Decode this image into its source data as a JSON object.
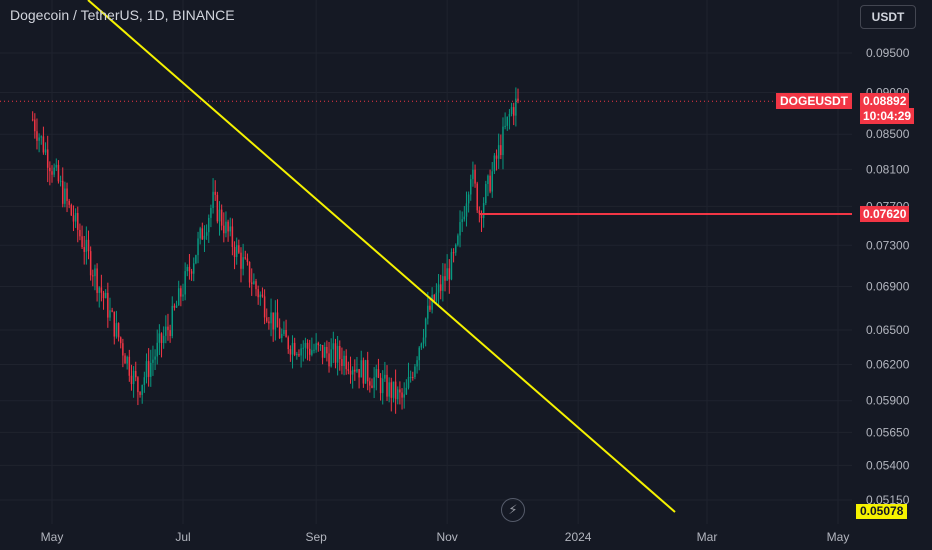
{
  "header": {
    "title": "Dogecoin / TetherUS, 1D, BINANCE",
    "currency_label": "USDT"
  },
  "tags": {
    "symbol": "DOGEUSDT",
    "last_price": "0.08892",
    "countdown": "10:04:29",
    "level": "0.07620",
    "bottom_value": "0.05078"
  },
  "colors": {
    "background": "#151924",
    "grid": "#1f232e",
    "up": "#089981",
    "down": "#f23645",
    "trendline": "#f5f200",
    "level_line": "#f23645",
    "axis_text": "#b2b5be"
  },
  "chart_data": {
    "type": "candlestick",
    "title": "Dogecoin / TetherUS, 1D, BINANCE",
    "x_ticks": [
      "May",
      "Jul",
      "Sep",
      "Nov",
      "2024",
      "Mar",
      "May"
    ],
    "y_ticks": [
      "0.09500",
      "0.09000",
      "0.08500",
      "0.08100",
      "0.07700",
      "0.07300",
      "0.06900",
      "0.06500",
      "0.06200",
      "0.05900",
      "0.05650",
      "0.05400",
      "0.05150"
    ],
    "y_scale": "log",
    "last_price": 0.08892,
    "horizontal_level": 0.0762,
    "grid": true,
    "key_points": [
      {
        "date": "2023-04-20",
        "close": 0.088
      },
      {
        "date": "2023-05-15",
        "close": 0.0735
      },
      {
        "date": "2023-06-10",
        "close": 0.06
      },
      {
        "date": "2023-06-25",
        "close": 0.0655
      },
      {
        "date": "2023-07-15",
        "close": 0.0775
      },
      {
        "date": "2023-07-25",
        "close": 0.0728
      },
      {
        "date": "2023-08-17",
        "close": 0.064
      },
      {
        "date": "2023-09-15",
        "close": 0.0625
      },
      {
        "date": "2023-10-12",
        "close": 0.059
      },
      {
        "date": "2023-10-22",
        "close": 0.066
      },
      {
        "date": "2023-11-05",
        "close": 0.072
      },
      {
        "date": "2023-11-12",
        "close": 0.081
      },
      {
        "date": "2023-11-16",
        "close": 0.0765
      },
      {
        "date": "2023-11-20",
        "close": 0.079
      },
      {
        "date": "2023-12-01",
        "close": 0.088
      },
      {
        "date": "2023-12-04",
        "close": 0.0889
      }
    ]
  }
}
